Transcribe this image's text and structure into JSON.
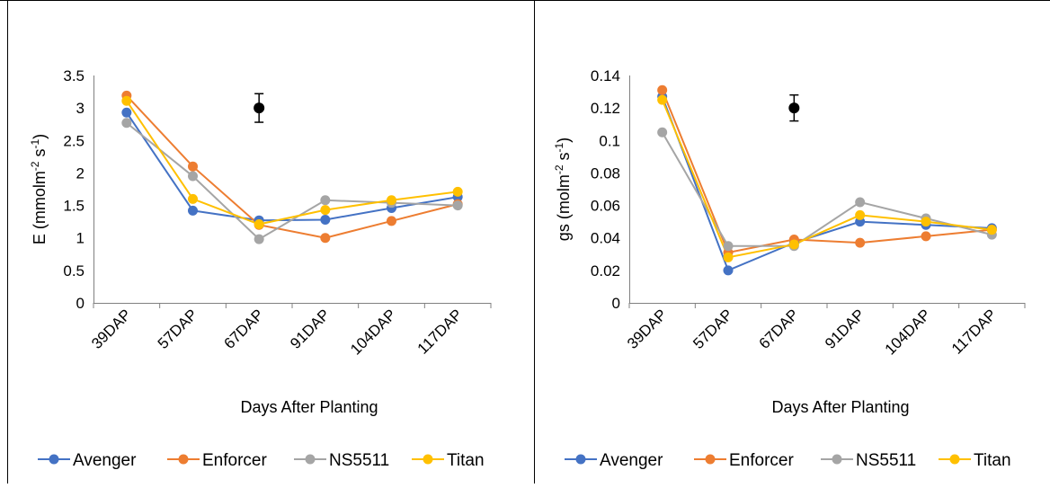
{
  "chart_data": [
    {
      "type": "line",
      "categories": [
        "39DAP",
        "57DAP",
        "67DAP",
        "91DAP",
        "104DAP",
        "117DAP"
      ],
      "xlabel": "Days After Planting",
      "ylabel_main": "E (mmolm",
      "ylabel_sup1": "-2",
      "ylabel_mid": " s",
      "ylabel_sup2": "-1",
      "ylabel_end": ")",
      "ylim": [
        0,
        3.5
      ],
      "yticks": [
        0,
        0.5,
        1,
        1.5,
        2,
        2.5,
        3,
        3.5
      ],
      "ytick_labels": [
        "0",
        "0.5",
        "1",
        "1.5",
        "2",
        "2.5",
        "3",
        "3.5"
      ],
      "error_bar": {
        "x": 2.5,
        "y": 3.0,
        "low": 2.78,
        "high": 3.22
      },
      "legend_position": "bottom",
      "series": [
        {
          "name": "Avenger",
          "values": [
            2.93,
            1.42,
            1.27,
            1.28,
            1.46,
            1.63
          ]
        },
        {
          "name": "Enforcer",
          "values": [
            3.19,
            2.1,
            1.2,
            1.0,
            1.26,
            1.52
          ]
        },
        {
          "name": "NS5511",
          "values": [
            2.77,
            1.95,
            0.98,
            1.58,
            1.54,
            1.5
          ]
        },
        {
          "name": "Titan",
          "values": [
            3.11,
            1.6,
            1.21,
            1.43,
            1.58,
            1.71
          ]
        }
      ]
    },
    {
      "type": "line",
      "categories": [
        "39DAP",
        "57DAP",
        "67DAP",
        "91DAP",
        "104DAP",
        "117DAP"
      ],
      "xlabel": "Days After Planting",
      "ylabel_main": "gs (molm",
      "ylabel_sup1": "-2",
      "ylabel_mid": " s",
      "ylabel_sup2": "-1",
      "ylabel_end": ")",
      "ylim": [
        0,
        0.14
      ],
      "yticks": [
        0,
        0.02,
        0.04,
        0.06,
        0.08,
        0.1,
        0.12,
        0.14
      ],
      "ytick_labels": [
        "0",
        "0.02",
        "0.04",
        "0.06",
        "0.08",
        "0.1",
        "0.12",
        "0.14"
      ],
      "error_bar": {
        "x": 2.5,
        "y": 0.12,
        "low": 0.112,
        "high": 0.128
      },
      "legend_position": "bottom",
      "series": [
        {
          "name": "Avenger",
          "values": [
            0.127,
            0.02,
            0.037,
            0.05,
            0.048,
            0.046
          ]
        },
        {
          "name": "Enforcer",
          "values": [
            0.131,
            0.031,
            0.039,
            0.037,
            0.041,
            0.045
          ]
        },
        {
          "name": "NS5511",
          "values": [
            0.105,
            0.035,
            0.035,
            0.062,
            0.052,
            0.042
          ]
        },
        {
          "name": "Titan",
          "values": [
            0.125,
            0.028,
            0.036,
            0.054,
            0.05,
            0.045
          ]
        }
      ]
    }
  ],
  "colors": {
    "Avenger": "#4472C4",
    "Enforcer": "#ED7D31",
    "NS5511": "#A5A5A5",
    "Titan": "#FFC000",
    "axis": "#000000",
    "border": "#000000"
  }
}
